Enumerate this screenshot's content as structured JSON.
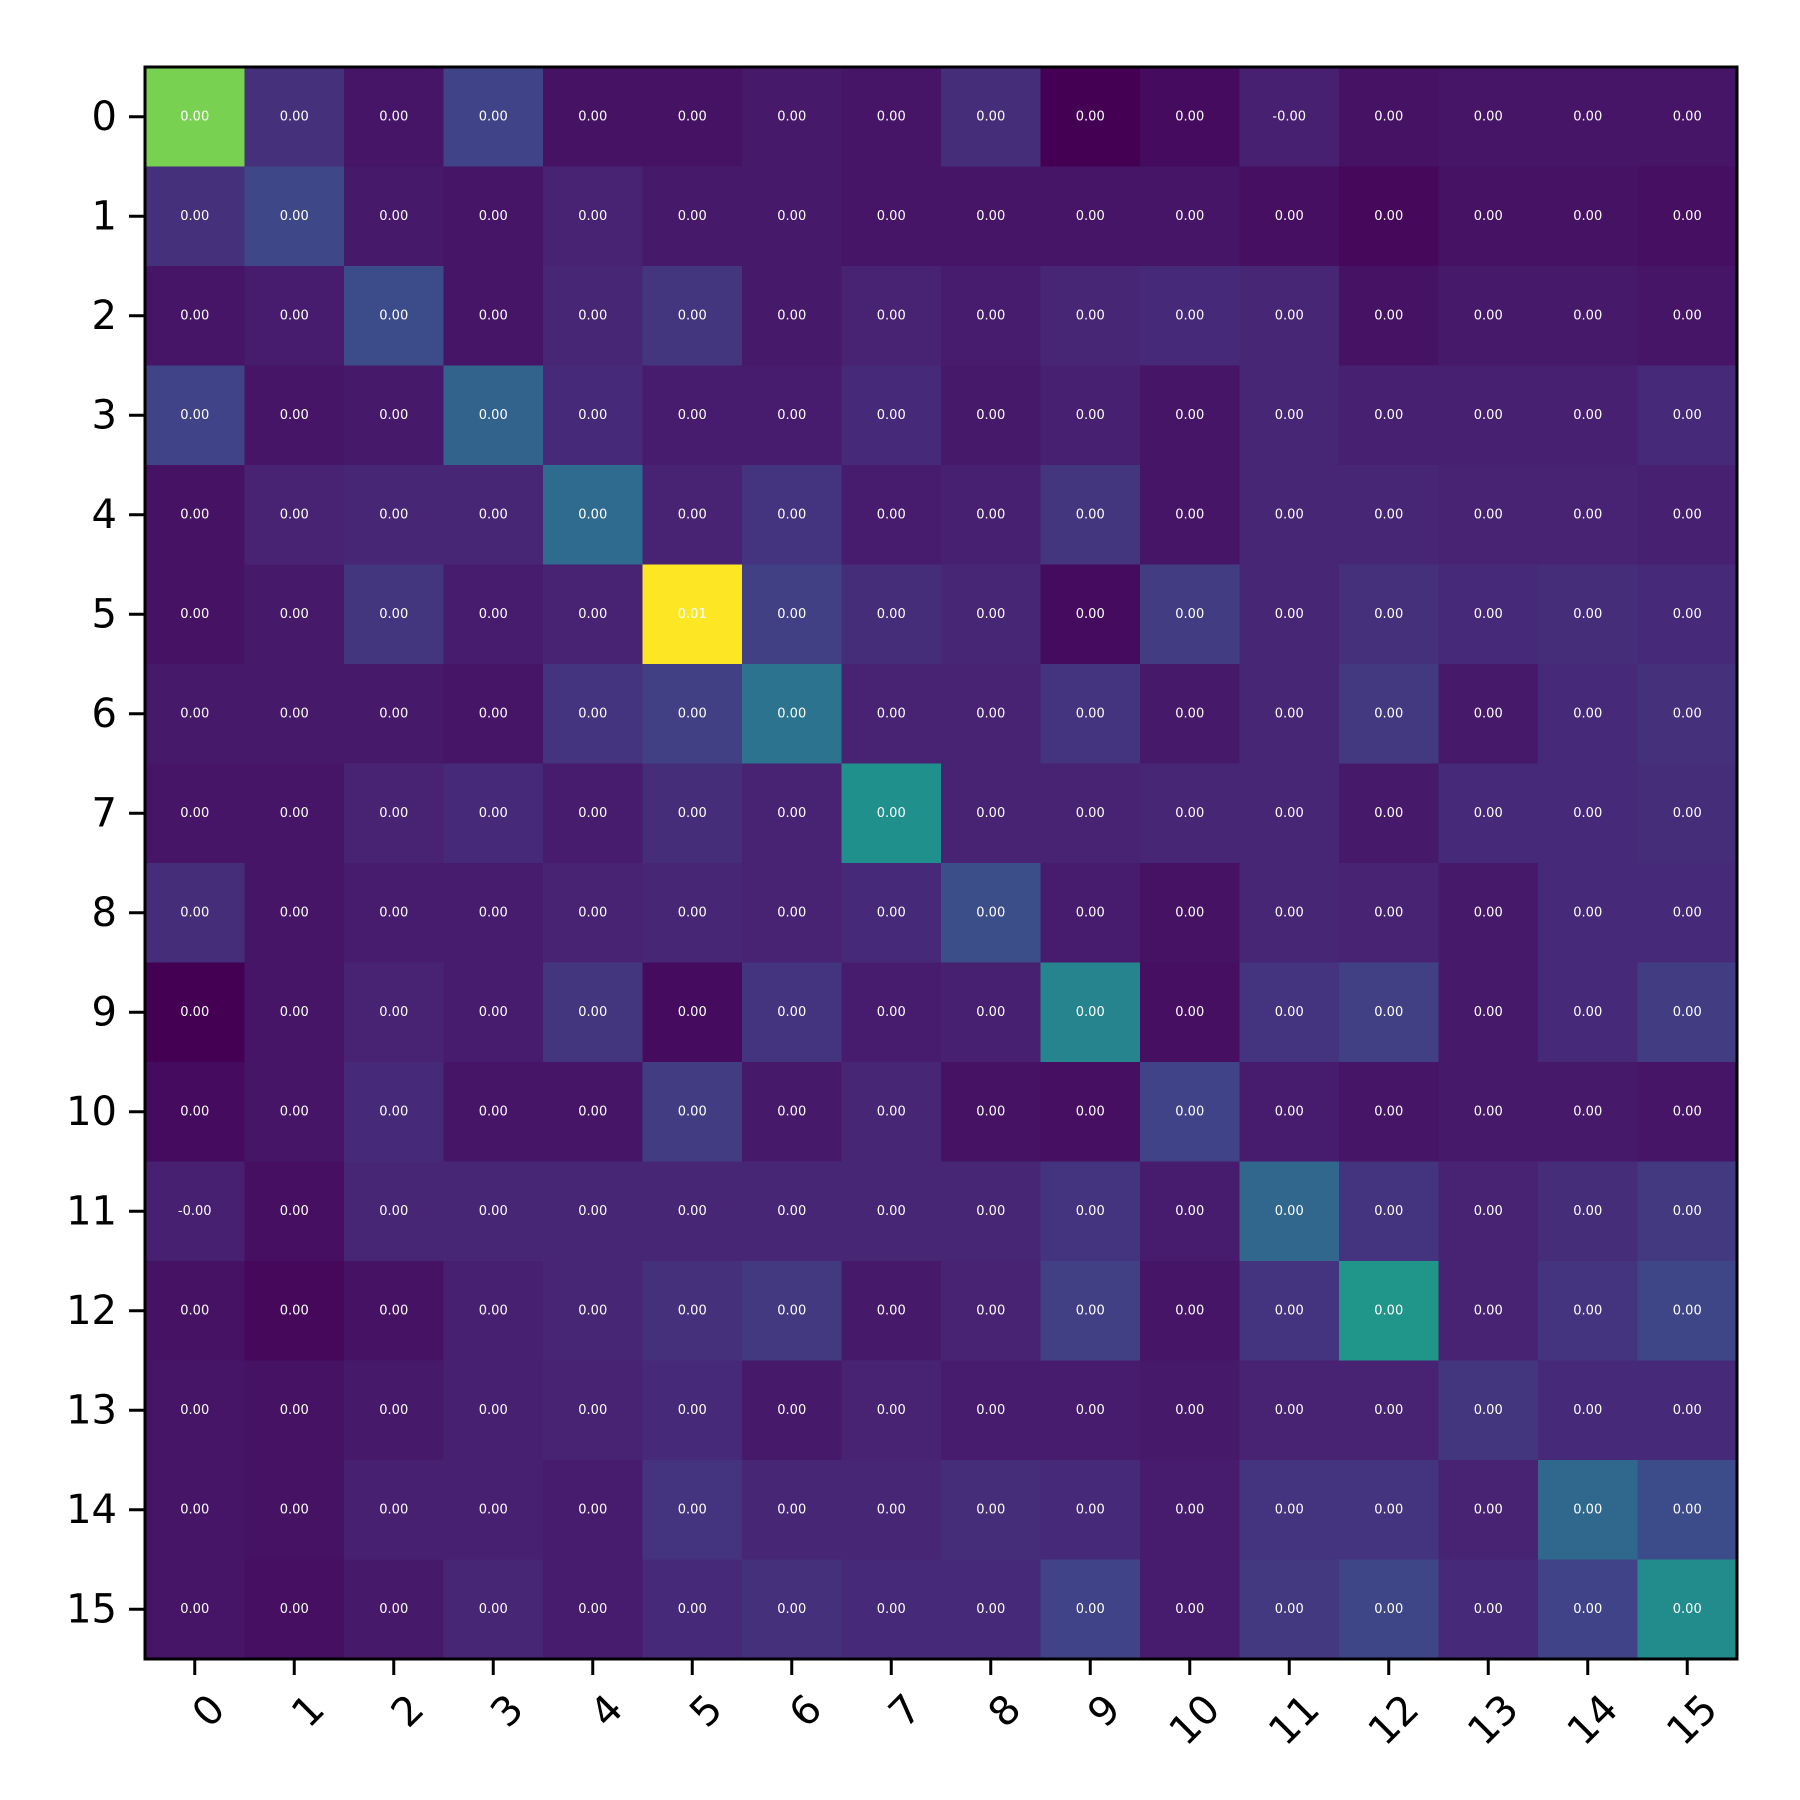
{
  "chart_data": {
    "type": "heatmap",
    "title": "",
    "xlabel": "",
    "ylabel": "",
    "colormap": "viridis",
    "x_tick_labels": [
      "0",
      "1",
      "2",
      "3",
      "4",
      "5",
      "6",
      "7",
      "8",
      "9",
      "10",
      "11",
      "12",
      "13",
      "14",
      "15"
    ],
    "y_tick_labels": [
      "0",
      "1",
      "2",
      "3",
      "4",
      "5",
      "6",
      "7",
      "8",
      "9",
      "10",
      "11",
      "12",
      "13",
      "14",
      "15"
    ],
    "x_tick_rotation_deg": 45,
    "grid": false,
    "colorbar": false,
    "value_format": "2 decimals",
    "intensity_note": "relative color intensity 0-1 read from viridis colors; printed labels in cell_labels",
    "intensity": [
      [
        0.8,
        0.14,
        0.06,
        0.2,
        0.05,
        0.05,
        0.07,
        0.06,
        0.13,
        0.0,
        0.03,
        0.09,
        0.05,
        0.06,
        0.06,
        0.06
      ],
      [
        0.14,
        0.22,
        0.07,
        0.06,
        0.1,
        0.07,
        0.07,
        0.06,
        0.06,
        0.06,
        0.06,
        0.04,
        0.02,
        0.05,
        0.05,
        0.04
      ],
      [
        0.06,
        0.08,
        0.23,
        0.06,
        0.11,
        0.16,
        0.07,
        0.1,
        0.08,
        0.11,
        0.12,
        0.11,
        0.05,
        0.07,
        0.07,
        0.06
      ],
      [
        0.2,
        0.06,
        0.07,
        0.32,
        0.12,
        0.08,
        0.08,
        0.12,
        0.07,
        0.09,
        0.06,
        0.11,
        0.09,
        0.09,
        0.09,
        0.12
      ],
      [
        0.05,
        0.1,
        0.11,
        0.11,
        0.35,
        0.1,
        0.15,
        0.08,
        0.09,
        0.16,
        0.06,
        0.11,
        0.11,
        0.1,
        0.1,
        0.09
      ],
      [
        0.05,
        0.07,
        0.16,
        0.08,
        0.1,
        1.0,
        0.19,
        0.13,
        0.11,
        0.03,
        0.18,
        0.11,
        0.14,
        0.12,
        0.13,
        0.12
      ],
      [
        0.07,
        0.07,
        0.07,
        0.06,
        0.15,
        0.19,
        0.38,
        0.1,
        0.1,
        0.15,
        0.07,
        0.11,
        0.17,
        0.07,
        0.12,
        0.14
      ],
      [
        0.06,
        0.06,
        0.1,
        0.12,
        0.08,
        0.13,
        0.1,
        0.5,
        0.1,
        0.1,
        0.11,
        0.11,
        0.07,
        0.12,
        0.12,
        0.13
      ],
      [
        0.13,
        0.06,
        0.08,
        0.08,
        0.1,
        0.11,
        0.1,
        0.12,
        0.24,
        0.08,
        0.05,
        0.11,
        0.1,
        0.07,
        0.12,
        0.12
      ],
      [
        0.0,
        0.06,
        0.1,
        0.08,
        0.16,
        0.03,
        0.15,
        0.08,
        0.09,
        0.45,
        0.04,
        0.15,
        0.19,
        0.07,
        0.12,
        0.18
      ],
      [
        0.03,
        0.06,
        0.12,
        0.06,
        0.06,
        0.18,
        0.07,
        0.11,
        0.05,
        0.04,
        0.2,
        0.08,
        0.06,
        0.07,
        0.07,
        0.06
      ],
      [
        0.09,
        0.04,
        0.11,
        0.11,
        0.11,
        0.11,
        0.11,
        0.11,
        0.11,
        0.15,
        0.08,
        0.33,
        0.15,
        0.1,
        0.13,
        0.17
      ],
      [
        0.05,
        0.02,
        0.05,
        0.09,
        0.11,
        0.14,
        0.17,
        0.07,
        0.1,
        0.19,
        0.06,
        0.15,
        0.52,
        0.1,
        0.15,
        0.21
      ],
      [
        0.06,
        0.05,
        0.07,
        0.09,
        0.1,
        0.12,
        0.07,
        0.1,
        0.08,
        0.08,
        0.07,
        0.1,
        0.1,
        0.16,
        0.12,
        0.12
      ],
      [
        0.06,
        0.05,
        0.09,
        0.09,
        0.08,
        0.15,
        0.11,
        0.11,
        0.13,
        0.12,
        0.08,
        0.15,
        0.15,
        0.1,
        0.34,
        0.23
      ],
      [
        0.06,
        0.04,
        0.07,
        0.11,
        0.08,
        0.12,
        0.14,
        0.12,
        0.12,
        0.2,
        0.08,
        0.17,
        0.21,
        0.12,
        0.2,
        0.48
      ]
    ],
    "cell_labels": [
      [
        "0.00",
        "0.00",
        "0.00",
        "0.00",
        "0.00",
        "0.00",
        "0.00",
        "0.00",
        "0.00",
        "0.00",
        "0.00",
        "-0.00",
        "0.00",
        "0.00",
        "0.00",
        "0.00"
      ],
      [
        "0.00",
        "0.00",
        "0.00",
        "0.00",
        "0.00",
        "0.00",
        "0.00",
        "0.00",
        "0.00",
        "0.00",
        "0.00",
        "0.00",
        "0.00",
        "0.00",
        "0.00",
        "0.00"
      ],
      [
        "0.00",
        "0.00",
        "0.00",
        "0.00",
        "0.00",
        "0.00",
        "0.00",
        "0.00",
        "0.00",
        "0.00",
        "0.00",
        "0.00",
        "0.00",
        "0.00",
        "0.00",
        "0.00"
      ],
      [
        "0.00",
        "0.00",
        "0.00",
        "0.00",
        "0.00",
        "0.00",
        "0.00",
        "0.00",
        "0.00",
        "0.00",
        "0.00",
        "0.00",
        "0.00",
        "0.00",
        "0.00",
        "0.00"
      ],
      [
        "0.00",
        "0.00",
        "0.00",
        "0.00",
        "0.00",
        "0.00",
        "0.00",
        "0.00",
        "0.00",
        "0.00",
        "0.00",
        "0.00",
        "0.00",
        "0.00",
        "0.00",
        "0.00"
      ],
      [
        "0.00",
        "0.00",
        "0.00",
        "0.00",
        "0.00",
        "0.01",
        "0.00",
        "0.00",
        "0.00",
        "0.00",
        "0.00",
        "0.00",
        "0.00",
        "0.00",
        "0.00",
        "0.00"
      ],
      [
        "0.00",
        "0.00",
        "0.00",
        "0.00",
        "0.00",
        "0.00",
        "0.00",
        "0.00",
        "0.00",
        "0.00",
        "0.00",
        "0.00",
        "0.00",
        "0.00",
        "0.00",
        "0.00"
      ],
      [
        "0.00",
        "0.00",
        "0.00",
        "0.00",
        "0.00",
        "0.00",
        "0.00",
        "0.00",
        "0.00",
        "0.00",
        "0.00",
        "0.00",
        "0.00",
        "0.00",
        "0.00",
        "0.00"
      ],
      [
        "0.00",
        "0.00",
        "0.00",
        "0.00",
        "0.00",
        "0.00",
        "0.00",
        "0.00",
        "0.00",
        "0.00",
        "0.00",
        "0.00",
        "0.00",
        "0.00",
        "0.00",
        "0.00"
      ],
      [
        "0.00",
        "0.00",
        "0.00",
        "0.00",
        "0.00",
        "0.00",
        "0.00",
        "0.00",
        "0.00",
        "0.00",
        "0.00",
        "0.00",
        "0.00",
        "0.00",
        "0.00",
        "0.00"
      ],
      [
        "0.00",
        "0.00",
        "0.00",
        "0.00",
        "0.00",
        "0.00",
        "0.00",
        "0.00",
        "0.00",
        "0.00",
        "0.00",
        "0.00",
        "0.00",
        "0.00",
        "0.00",
        "0.00"
      ],
      [
        "-0.00",
        "0.00",
        "0.00",
        "0.00",
        "0.00",
        "0.00",
        "0.00",
        "0.00",
        "0.00",
        "0.00",
        "0.00",
        "0.00",
        "0.00",
        "0.00",
        "0.00",
        "0.00"
      ],
      [
        "0.00",
        "0.00",
        "0.00",
        "0.00",
        "0.00",
        "0.00",
        "0.00",
        "0.00",
        "0.00",
        "0.00",
        "0.00",
        "0.00",
        "0.00",
        "0.00",
        "0.00",
        "0.00"
      ],
      [
        "0.00",
        "0.00",
        "0.00",
        "0.00",
        "0.00",
        "0.00",
        "0.00",
        "0.00",
        "0.00",
        "0.00",
        "0.00",
        "0.00",
        "0.00",
        "0.00",
        "0.00",
        "0.00"
      ],
      [
        "0.00",
        "0.00",
        "0.00",
        "0.00",
        "0.00",
        "0.00",
        "0.00",
        "0.00",
        "0.00",
        "0.00",
        "0.00",
        "0.00",
        "0.00",
        "0.00",
        "0.00",
        "0.00"
      ],
      [
        "0.00",
        "0.00",
        "0.00",
        "0.00",
        "0.00",
        "0.00",
        "0.00",
        "0.00",
        "0.00",
        "0.00",
        "0.00",
        "0.00",
        "0.00",
        "0.00",
        "0.00",
        "0.00"
      ]
    ]
  }
}
